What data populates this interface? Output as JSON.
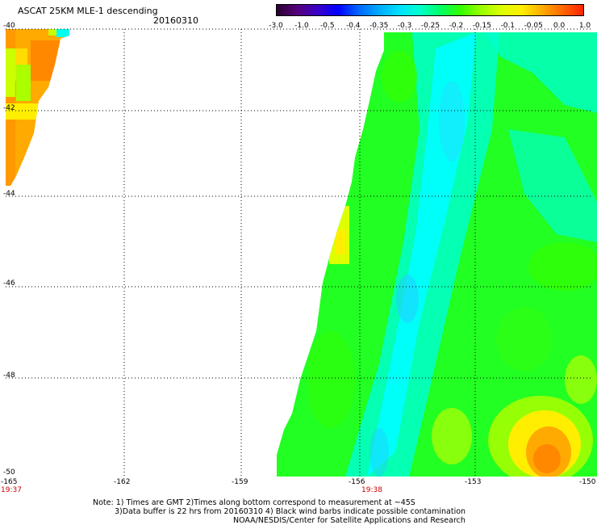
{
  "header": {
    "title": "ASCAT 25KM MLE-1 descending",
    "date": "20160310"
  },
  "colorbar": {
    "colors": [
      "#2a0030",
      "#55007a",
      "#3a00c8",
      "#0000ff",
      "#0066ff",
      "#00aaff",
      "#00e0ff",
      "#00ffcc",
      "#00ff66",
      "#33ff00",
      "#99ff00",
      "#ddff00",
      "#ffee00",
      "#ffaa00",
      "#ff6600",
      "#ff2200"
    ],
    "labels": [
      "-3.0",
      "-1.0",
      "-0.5",
      "-0.4",
      "-0.35",
      "-0.3",
      "-0.25",
      "-0.2",
      "-0.15",
      "-0.1",
      "-0.05",
      "0.0",
      "1.0"
    ]
  },
  "axes": {
    "y_labels": [
      "-40",
      "-42",
      "-44",
      "-46",
      "-48",
      "-50"
    ],
    "x_labels": [
      "-165",
      "-162",
      "-159",
      "-156",
      "-153",
      "-150"
    ],
    "time_labels": [
      {
        "text": "19:37",
        "at_lon": "-165"
      },
      {
        "text": "19:38",
        "at_lon": "-156"
      }
    ]
  },
  "notes": {
    "line1": "Note: 1) Times are GMT 2)Times along bottom correspond to measurement at ~45S",
    "line2": "3)Data buffer is 22 hrs from 20160310 4) Black wind barbs indicate possible contamination",
    "line3": "NOAA/NESDIS/Center for Satellite Applications and Research"
  }
}
